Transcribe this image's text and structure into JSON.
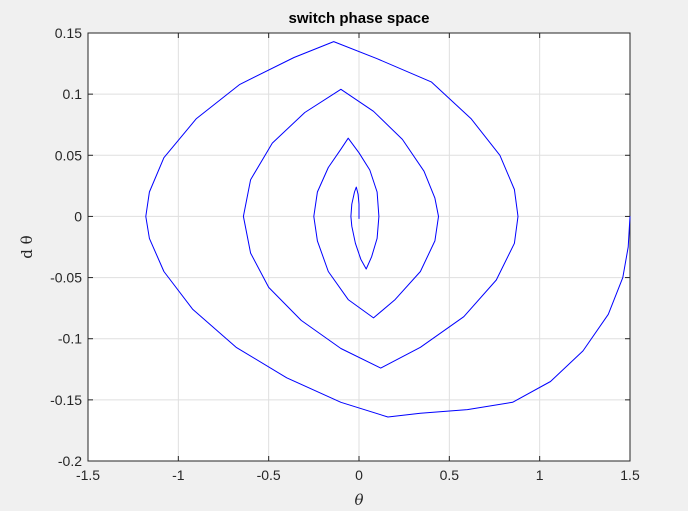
{
  "chart_data": {
    "type": "line",
    "title": "switch phase space",
    "xlabel": "θ",
    "ylabel": "d θ",
    "xlim": [
      -1.5,
      1.5
    ],
    "ylim": [
      -0.2,
      0.15
    ],
    "xticks": [
      -1.5,
      -1,
      -0.5,
      0,
      0.5,
      1,
      1.5
    ],
    "xtick_labels": [
      "-1.5",
      "-1",
      "-0.5",
      "0",
      "0.5",
      "1",
      "1.5"
    ],
    "yticks": [
      -0.2,
      -0.15,
      -0.1,
      -0.05,
      0,
      0.05,
      0.1,
      0.15
    ],
    "ytick_labels": [
      "-0.2",
      "-0.15",
      "-0.1",
      "-0.05",
      "0",
      "0.05",
      "0.1",
      "0.15"
    ],
    "grid": true,
    "legend": "none",
    "series": [
      {
        "color": "#0000ff",
        "points": [
          [
            1.5,
            0
          ],
          [
            1.49,
            -0.025
          ],
          [
            1.46,
            -0.05
          ],
          [
            1.38,
            -0.08
          ],
          [
            1.24,
            -0.11
          ],
          [
            1.06,
            -0.135
          ],
          [
            0.85,
            -0.152
          ],
          [
            0.6,
            -0.158
          ],
          [
            0.34,
            -0.161
          ],
          [
            0.16,
            -0.164
          ],
          [
            -0.1,
            -0.152
          ],
          [
            -0.4,
            -0.132
          ],
          [
            -0.68,
            -0.107
          ],
          [
            -0.92,
            -0.076
          ],
          [
            -1.08,
            -0.045
          ],
          [
            -1.16,
            -0.018
          ],
          [
            -1.18,
            0
          ],
          [
            -1.16,
            0.02
          ],
          [
            -1.08,
            0.048
          ],
          [
            -0.9,
            0.08
          ],
          [
            -0.66,
            0.108
          ],
          [
            -0.36,
            0.13
          ],
          [
            -0.14,
            0.143
          ],
          [
            0.1,
            0.129
          ],
          [
            0.4,
            0.11
          ],
          [
            0.62,
            0.08
          ],
          [
            0.78,
            0.05
          ],
          [
            0.86,
            0.022
          ],
          [
            0.88,
            0
          ],
          [
            0.86,
            -0.022
          ],
          [
            0.76,
            -0.052
          ],
          [
            0.58,
            -0.082
          ],
          [
            0.34,
            -0.107
          ],
          [
            0.12,
            -0.124
          ],
          [
            -0.1,
            -0.108
          ],
          [
            -0.32,
            -0.085
          ],
          [
            -0.5,
            -0.058
          ],
          [
            -0.6,
            -0.03
          ],
          [
            -0.64,
            0
          ],
          [
            -0.6,
            0.03
          ],
          [
            -0.48,
            0.06
          ],
          [
            -0.3,
            0.085
          ],
          [
            -0.1,
            0.104
          ],
          [
            0.08,
            0.086
          ],
          [
            0.24,
            0.063
          ],
          [
            0.36,
            0.037
          ],
          [
            0.42,
            0.015
          ],
          [
            0.44,
            0
          ],
          [
            0.42,
            -0.02
          ],
          [
            0.34,
            -0.045
          ],
          [
            0.2,
            -0.068
          ],
          [
            0.08,
            -0.083
          ],
          [
            -0.06,
            -0.068
          ],
          [
            -0.17,
            -0.045
          ],
          [
            -0.23,
            -0.02
          ],
          [
            -0.25,
            0
          ],
          [
            -0.23,
            0.02
          ],
          [
            -0.17,
            0.04
          ],
          [
            -0.1,
            0.055
          ],
          [
            -0.06,
            0.064
          ],
          [
            0.0,
            0.052
          ],
          [
            0.06,
            0.038
          ],
          [
            0.1,
            0.02
          ],
          [
            0.11,
            0
          ],
          [
            0.1,
            -0.018
          ],
          [
            0.07,
            -0.033
          ],
          [
            0.04,
            -0.043
          ],
          [
            0.01,
            -0.035
          ],
          [
            -0.02,
            -0.022
          ],
          [
            -0.04,
            -0.008
          ],
          [
            -0.045,
            0
          ],
          [
            -0.04,
            0.01
          ],
          [
            -0.025,
            0.02
          ],
          [
            -0.015,
            0.024
          ],
          [
            -0.005,
            0.018
          ],
          [
            0.0,
            0.01
          ],
          [
            0.0,
            0.0
          ],
          [
            0.0,
            -0.002
          ]
        ]
      }
    ]
  }
}
